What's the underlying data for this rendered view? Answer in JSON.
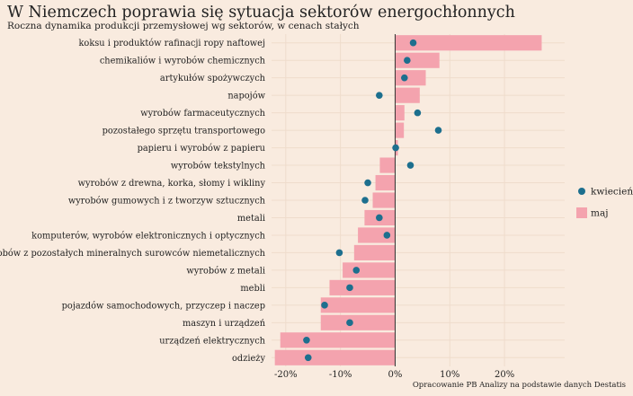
{
  "title": "W Niemczech poprawia się sytuacja sektorów energochłonnych",
  "subtitle": "Roczna dynamika produkcji przemysłowej wg sektorów, w cenach stałych",
  "source": "Opracowanie PB Analizy na podstawie danych Destatis",
  "colors": {
    "background": "#f9ebdf",
    "bar": "#f4a3ae",
    "dot": "#1d6f8e",
    "grid": "#efdccc",
    "zero": "#333333"
  },
  "chart_data": {
    "type": "bar",
    "orientation": "horizontal",
    "categories": [
      "koksu i produktów rafinacji ropy naftowej",
      "chemikaliów i wyrobów chemicznych",
      "artykułów spożywczych",
      "napojów",
      "wyrobów farmaceutycznych",
      "pozostałego sprzętu transportowego",
      "papieru i wyrobów z papieru",
      "wyrobów tekstylnych",
      "wyrobów z drewna, korka, słomy i wikliny",
      "wyrobów gumowych i z tworzyw sztucznych",
      "metali",
      "komputerów, wyrobów elektronicznych i optycznych",
      "wyrobów z pozostałych mineralnych surowców niemetalicznych",
      "wyrobów z metali",
      "mebli",
      "pojazdów samochodowych, przyczep i naczep",
      "maszyn i urządzeń",
      "urządzeń elektrycznych",
      "odzieży"
    ],
    "series": [
      {
        "name": "maj",
        "mark": "bar",
        "values": [
          26.8,
          8.1,
          5.6,
          4.5,
          1.7,
          1.6,
          0.5,
          -2.8,
          -3.6,
          -4.1,
          -5.6,
          -6.8,
          -7.5,
          -9.6,
          -12.0,
          -13.6,
          -13.6,
          -21.0,
          -22.0
        ]
      },
      {
        "name": "kwiecień",
        "mark": "dot",
        "values": [
          3.3,
          2.2,
          1.7,
          -2.9,
          4.1,
          7.9,
          0.1,
          2.8,
          -5.0,
          -5.5,
          -2.9,
          -1.5,
          -10.2,
          -7.1,
          -8.3,
          -12.9,
          -8.3,
          -16.2,
          -15.9
        ]
      }
    ],
    "xlim": [
      -22.6,
      31.0
    ],
    "xticks": [
      -20,
      -10,
      0,
      10,
      20
    ],
    "xtick_labels": [
      "-20%",
      "-10%",
      "0%",
      "10%",
      "20%"
    ],
    "legend": [
      {
        "label": "kwiecień",
        "symbol": "dot"
      },
      {
        "label": "maj",
        "symbol": "square"
      }
    ],
    "legend_position": "right",
    "grid": true
  }
}
